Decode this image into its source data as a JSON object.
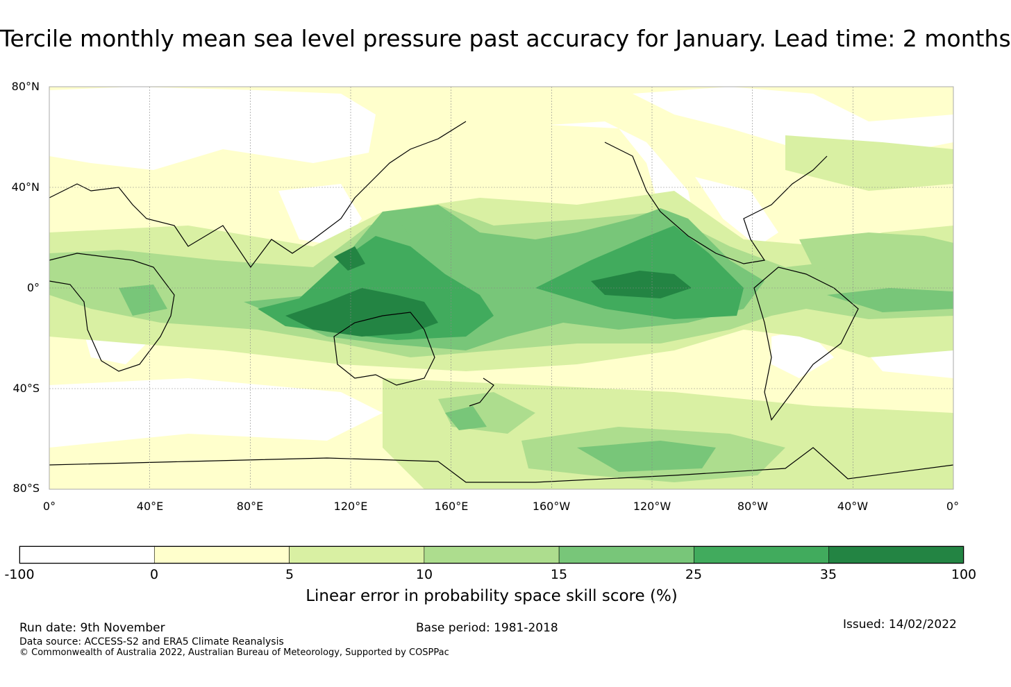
{
  "title": "Tercile monthly mean sea level pressure past accuracy for January. Lead time: 2 months",
  "map": {
    "lat_labels": [
      "80°N",
      "40°N",
      "0°",
      "40°S",
      "80°S"
    ],
    "lon_labels": [
      "0°",
      "40°E",
      "80°E",
      "120°E",
      "160°E",
      "160°W",
      "120°W",
      "80°W",
      "40°W",
      "0°"
    ]
  },
  "colorbar": {
    "bins": [
      {
        "label": "-100",
        "color": "#ffffff"
      },
      {
        "label": "0",
        "color": "#ffffcc"
      },
      {
        "label": "5",
        "color": "#d9f0a3"
      },
      {
        "label": "10",
        "color": "#addd8e"
      },
      {
        "label": "15",
        "color": "#78c679"
      },
      {
        "label": "25",
        "color": "#41ab5d"
      },
      {
        "label": "35",
        "color": "#238443"
      }
    ],
    "end_label": "100",
    "label": "Linear error in probability space skill score (%)"
  },
  "footer": {
    "run_date": "Run date: 9th November",
    "base_period": "Base period: 1981-2018",
    "issued": "Issued: 14/02/2022",
    "data_source": "Data source: ACCESS-S2 and ERA5 Climate Reanalysis",
    "copyright": "© Commonwealth of Australia 2022, Australian Bureau of Meteorology, Supported by COSPPac"
  }
}
